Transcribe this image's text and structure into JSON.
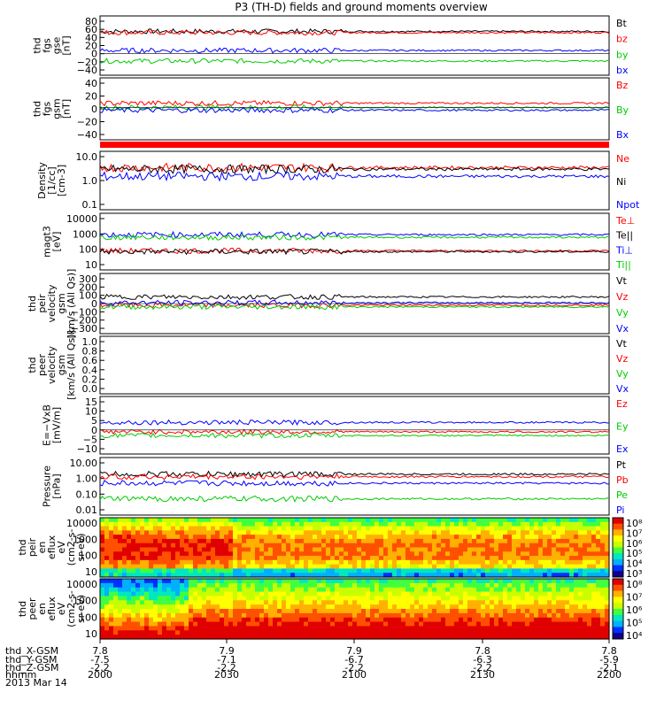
{
  "title": "P3 (TH-D) fields and ground moments overview",
  "date_label": "2013 Mar 14",
  "xaxis_rows": [
    {
      "label": "thd_X-GSM",
      "values": [
        "7.8",
        "7.9",
        "7.9",
        "7.8",
        "7.8"
      ]
    },
    {
      "label": "thd_Y-GSM",
      "values": [
        "-7.5",
        "-7.1",
        "-6.7",
        "-6.3",
        "-5.9"
      ]
    },
    {
      "label": "thd_Z-GSM",
      "values": [
        "-2.2",
        "-2.2",
        "-2.2",
        "-2.2",
        "-2.1"
      ]
    },
    {
      "label": "hhmm",
      "values": [
        "2000",
        "2030",
        "2100",
        "2130",
        "2200"
      ]
    }
  ],
  "colors": {
    "black": "#000000",
    "red": "#ff0000",
    "green": "#00cc00",
    "blue": "#0000ff"
  },
  "chart_data": [
    {
      "type": "line",
      "ylabel": [
        "thd",
        "fgs",
        "gse",
        "[nT]"
      ],
      "ylim": [
        -40,
        80
      ],
      "yticks": [
        "80",
        "60",
        "40",
        "20",
        "0",
        "−20",
        "−40"
      ],
      "series": [
        {
          "name": "Bt",
          "color": "#000000",
          "level": 55
        },
        {
          "name": "bz",
          "color": "#ff0000",
          "level": 52
        },
        {
          "name": "by",
          "color": "#00cc00",
          "level": -18
        },
        {
          "name": "bx",
          "color": "#0000ff",
          "level": 8
        }
      ]
    },
    {
      "type": "line",
      "ylabel": [
        "thd",
        "fgs",
        "gsm",
        "[nT]"
      ],
      "ylim": [
        -50,
        45
      ],
      "yticks": [
        "40",
        "20",
        "0",
        "−20",
        "−40"
      ],
      "series": [
        {
          "name": "Bz",
          "color": "#ff0000",
          "level": 8
        },
        {
          "name": "By",
          "color": "#00cc00",
          "level": 0
        },
        {
          "name": "Bx",
          "color": "#0000ff",
          "level": -5
        }
      ]
    },
    {
      "type": "bar",
      "ylabel": [],
      "series": [
        {
          "name": "",
          "color": "#ff0000"
        }
      ]
    },
    {
      "type": "line",
      "ylabel": [
        "Density",
        "[1/cc]",
        "[cm-3]"
      ],
      "ylim": [
        0.1,
        10.0
      ],
      "yticks": [
        "10.0",
        "1.0",
        "0.1"
      ],
      "series": [
        {
          "name": "Ne",
          "color": "#ff0000",
          "level": 3.5
        },
        {
          "name": "Ni",
          "color": "#000000",
          "level": 3.0
        },
        {
          "name": "Npot",
          "color": "#0000ff",
          "level": 1.5
        }
      ]
    },
    {
      "type": "line",
      "ylabel": [
        "magt3",
        "[eV]"
      ],
      "ylim": [
        10,
        10000
      ],
      "yticks": [
        "10000",
        "1000",
        "100",
        "10"
      ],
      "series": [
        {
          "name": "Te⊥",
          "color": "#ff0000",
          "level": 80
        },
        {
          "name": "Te||",
          "color": "#000000",
          "level": 70
        },
        {
          "name": "Ti⊥",
          "color": "#0000ff",
          "level": 900
        },
        {
          "name": "Ti||",
          "color": "#00cc00",
          "level": 600
        }
      ]
    },
    {
      "type": "line",
      "ylabel": [
        "thd",
        "peir",
        "velocity",
        "gsm",
        "[km/s (All Qs)]"
      ],
      "ylim": [
        -300,
        300
      ],
      "yticks": [
        "300",
        "200",
        "100",
        "0",
        "−100",
        "−200",
        "−300"
      ],
      "series": [
        {
          "name": "Vt",
          "color": "#000000",
          "level": 80
        },
        {
          "name": "Vz",
          "color": "#ff0000",
          "level": -20
        },
        {
          "name": "Vy",
          "color": "#00cc00",
          "level": -40
        },
        {
          "name": "Vx",
          "color": "#0000ff",
          "level": 10
        }
      ]
    },
    {
      "type": "line",
      "ylabel": [
        "thd",
        "peer",
        "velocity",
        "gsm",
        "[km/s (All Qs)]"
      ],
      "ylim": [
        0.0,
        1.0
      ],
      "yticks": [
        "1.0",
        "0.8",
        "0.6",
        "0.4",
        "0.2",
        "0.0"
      ],
      "series": [
        {
          "name": "Vt",
          "color": "#000000"
        },
        {
          "name": "Vz",
          "color": "#ff0000"
        },
        {
          "name": "Vy",
          "color": "#00cc00"
        },
        {
          "name": "Vx",
          "color": "#0000ff"
        }
      ]
    },
    {
      "type": "line",
      "ylabel": [
        "E=−VxB",
        "[mV/m]"
      ],
      "ylim": [
        -10,
        15
      ],
      "yticks": [
        "15",
        "10",
        "5",
        "0",
        "−5",
        "−10"
      ],
      "series": [
        {
          "name": "Ez",
          "color": "#ff0000",
          "level": -1
        },
        {
          "name": "Ey",
          "color": "#00cc00",
          "level": -3
        },
        {
          "name": "Ex",
          "color": "#0000ff",
          "level": 4
        }
      ]
    },
    {
      "type": "line",
      "ylabel": [
        "Pressure",
        "[nPa]"
      ],
      "ylim": [
        0.01,
        10.0
      ],
      "yticks": [
        "10.00",
        "1.00",
        "0.10",
        "0.01"
      ],
      "series": [
        {
          "name": "Pt",
          "color": "#000000",
          "level": 1.9
        },
        {
          "name": "Pb",
          "color": "#ff0000",
          "level": 1.3
        },
        {
          "name": "Pe",
          "color": "#00cc00",
          "level": 0.05
        },
        {
          "name": "Pi",
          "color": "#0000ff",
          "level": 0.5
        }
      ]
    },
    {
      "type": "heatmap",
      "ylabel": [
        "thd",
        "peir",
        "en",
        "eflux",
        "eV",
        "(cm2-s-",
        "sr-eV)"
      ],
      "ylim": [
        10,
        10000
      ],
      "yticks": [
        "10000",
        "1000",
        "100",
        "10"
      ],
      "colorbar": {
        "ticks": [
          "10⁸",
          "10⁷",
          "10⁶",
          "10⁵",
          "10⁴",
          "10³"
        ]
      }
    },
    {
      "type": "heatmap",
      "ylabel": [
        "thd",
        "peer",
        "en",
        "eflux",
        "eV",
        "(cm2-s-",
        "sr-eV)"
      ],
      "ylim": [
        10,
        10000
      ],
      "yticks": [
        "10000",
        "1000",
        "100",
        "10"
      ],
      "colorbar": {
        "ticks": [
          "10⁸",
          "10⁷",
          "10⁶",
          "10⁵",
          "10⁴"
        ]
      }
    }
  ]
}
